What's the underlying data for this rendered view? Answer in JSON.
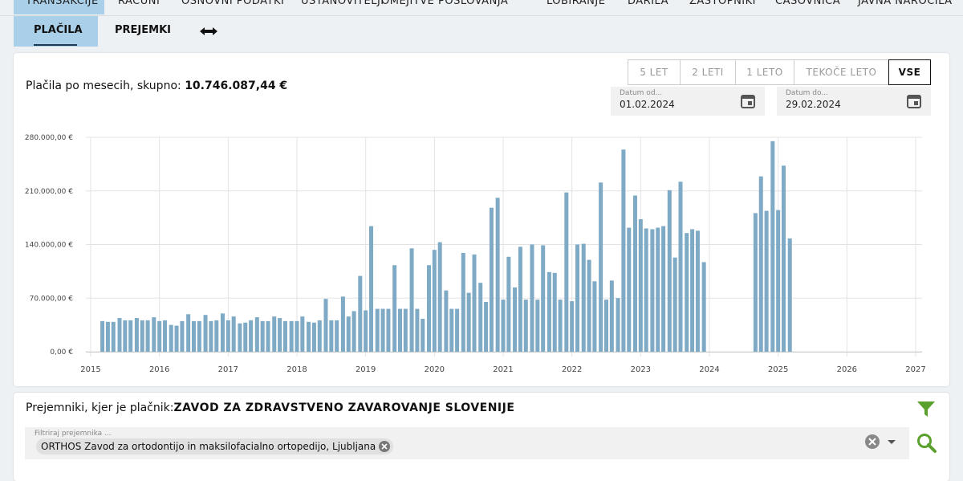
{
  "tabs": [
    "TRANSAKCIJE",
    "RAČUNI",
    "OSNOVNI PODATKI",
    "USTANOVITELJI",
    "OMEJITVE POSLOVANJA",
    "LOBIRANJE",
    "DARILA",
    "ZASTOPNIKI",
    "ČASOVNICA",
    "JAVNA NAROČILA"
  ],
  "subtabs": [
    "PLAČILA",
    "PREJEMKI"
  ],
  "panel": {
    "title": "Plačila po mesecih, skupno:",
    "total": "10.746.087,44 €",
    "ranges": [
      "5 LET",
      "2 LETI",
      "1 LETO",
      "TEKOČE LETO",
      "VSE"
    ],
    "date_from": {
      "label": "Datum od...",
      "value": "01.02.2024"
    },
    "date_to": {
      "label": "Datum do...",
      "value": "29.02.2024"
    }
  },
  "chart_data": {
    "type": "bar",
    "color": "#7eaac6",
    "grid": true,
    "x": [
      2015.17,
      2015.25,
      2015.33,
      2015.42,
      2015.5,
      2015.58,
      2015.67,
      2015.75,
      2015.83,
      2015.92,
      2016,
      2016.08,
      2016.17,
      2016.25,
      2016.33,
      2016.42,
      2016.5,
      2016.58,
      2016.67,
      2016.75,
      2016.83,
      2016.92,
      2017,
      2017.08,
      2017.17,
      2017.25,
      2017.33,
      2017.42,
      2017.5,
      2017.58,
      2017.67,
      2017.75,
      2017.83,
      2017.92,
      2018,
      2018.08,
      2018.17,
      2018.25,
      2018.33,
      2018.42,
      2018.5,
      2018.58,
      2018.67,
      2018.75,
      2018.83,
      2018.92,
      2019,
      2019.08,
      2019.17,
      2019.25,
      2019.33,
      2019.42,
      2019.5,
      2019.58,
      2019.67,
      2019.75,
      2019.83,
      2019.92,
      2020,
      2020.08,
      2020.17,
      2020.25,
      2020.33,
      2020.42,
      2020.5,
      2020.58,
      2020.67,
      2020.75,
      2020.83,
      2020.92,
      2021,
      2021.08,
      2021.17,
      2021.25,
      2021.33,
      2021.42,
      2021.5,
      2021.58,
      2021.67,
      2021.75,
      2021.83,
      2021.92,
      2022,
      2022.08,
      2022.17,
      2022.25,
      2022.33,
      2022.42,
      2022.5,
      2022.58,
      2022.67,
      2022.75,
      2022.83,
      2022.92,
      2023,
      2023.08,
      2023.17,
      2023.25,
      2023.33,
      2023.42,
      2023.5,
      2023.58,
      2023.67,
      2023.75,
      2023.83,
      2023.92,
      2024.67,
      2024.75,
      2024.83,
      2024.92,
      2025,
      2025.08,
      2025.17
    ],
    "values": [
      40000,
      39000,
      39000,
      44000,
      41000,
      41000,
      44000,
      41000,
      41000,
      45000,
      40000,
      41000,
      35000,
      34000,
      40000,
      49000,
      40000,
      40000,
      48000,
      40000,
      41000,
      50000,
      41000,
      46000,
      37000,
      38000,
      41000,
      45000,
      40000,
      40000,
      46000,
      44000,
      40000,
      40000,
      40000,
      46000,
      39000,
      38000,
      41000,
      69000,
      41000,
      41000,
      72000,
      46000,
      53000,
      99000,
      54000,
      164000,
      56000,
      56000,
      56000,
      113000,
      56000,
      56000,
      135000,
      56000,
      43000,
      113000,
      133000,
      143000,
      80000,
      56000,
      56000,
      129000,
      77000,
      127000,
      90000,
      65000,
      188000,
      201000,
      68000,
      124000,
      84000,
      137000,
      68000,
      140000,
      68000,
      139000,
      104000,
      103000,
      68000,
      208000,
      66000,
      140000,
      141000,
      120000,
      92000,
      221000,
      68000,
      93000,
      70000,
      264000,
      162000,
      204000,
      173000,
      161000,
      160000,
      162000,
      164000,
      211000,
      123000,
      222000,
      155000,
      160000,
      158000,
      117000,
      181000,
      229000,
      184000,
      275000,
      185000,
      243000,
      148000
    ],
    "xlim": [
      2015,
      2027
    ],
    "xticks": [
      2015,
      2016,
      2017,
      2018,
      2019,
      2020,
      2021,
      2022,
      2023,
      2024,
      2025,
      2026,
      2027
    ],
    "ylim": [
      0,
      280000
    ],
    "yticks": [
      {
        "value": 0,
        "label": "0,00 €"
      },
      {
        "value": 70000,
        "label": "70.000,00 €"
      },
      {
        "value": 140000,
        "label": "140.000,00 €"
      },
      {
        "value": 210000,
        "label": "210.000,00 €"
      },
      {
        "value": 280000,
        "label": "280.000,00 €"
      }
    ]
  },
  "recipients": {
    "label": "Prejemniki, kjer je plačnik:",
    "payer": "ZAVOD ZA ZDRAVSTVENO ZAVAROVANJE SLOVENIJE",
    "filter_placeholder": "Filtriraj prejemnika ...",
    "chip": "ORTHOS Zavod za ortodontijo in maksilofacialno ortopedijo, Ljubljana"
  }
}
